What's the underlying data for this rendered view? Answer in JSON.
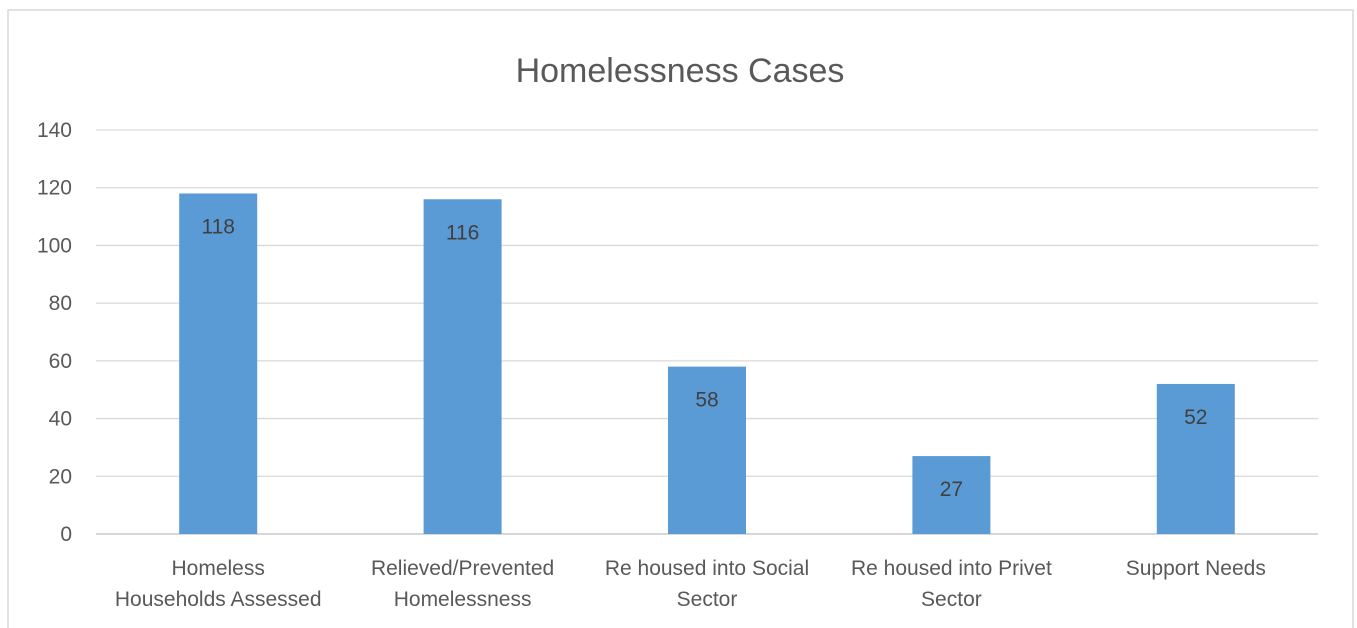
{
  "chart_data": {
    "type": "bar",
    "title": "Homelessness Cases",
    "xlabel": "",
    "ylabel": "",
    "categories": [
      [
        "Homeless",
        "Households Assessed"
      ],
      [
        "Relieved/Prevented",
        "Homelessness"
      ],
      [
        "Re housed into Social",
        "Sector"
      ],
      [
        "Re housed into Privet",
        "Sector"
      ],
      [
        "Support Needs"
      ]
    ],
    "values": [
      118,
      116,
      58,
      27,
      52
    ],
    "data_labels": [
      "118",
      "116",
      "58",
      "27",
      "52"
    ],
    "yticks": [
      "0",
      "20",
      "40",
      "60",
      "80",
      "100",
      "120",
      "140"
    ],
    "ylim": [
      0,
      140
    ],
    "grid": true,
    "legend": "none",
    "bar_color": "#5b9bd5"
  }
}
